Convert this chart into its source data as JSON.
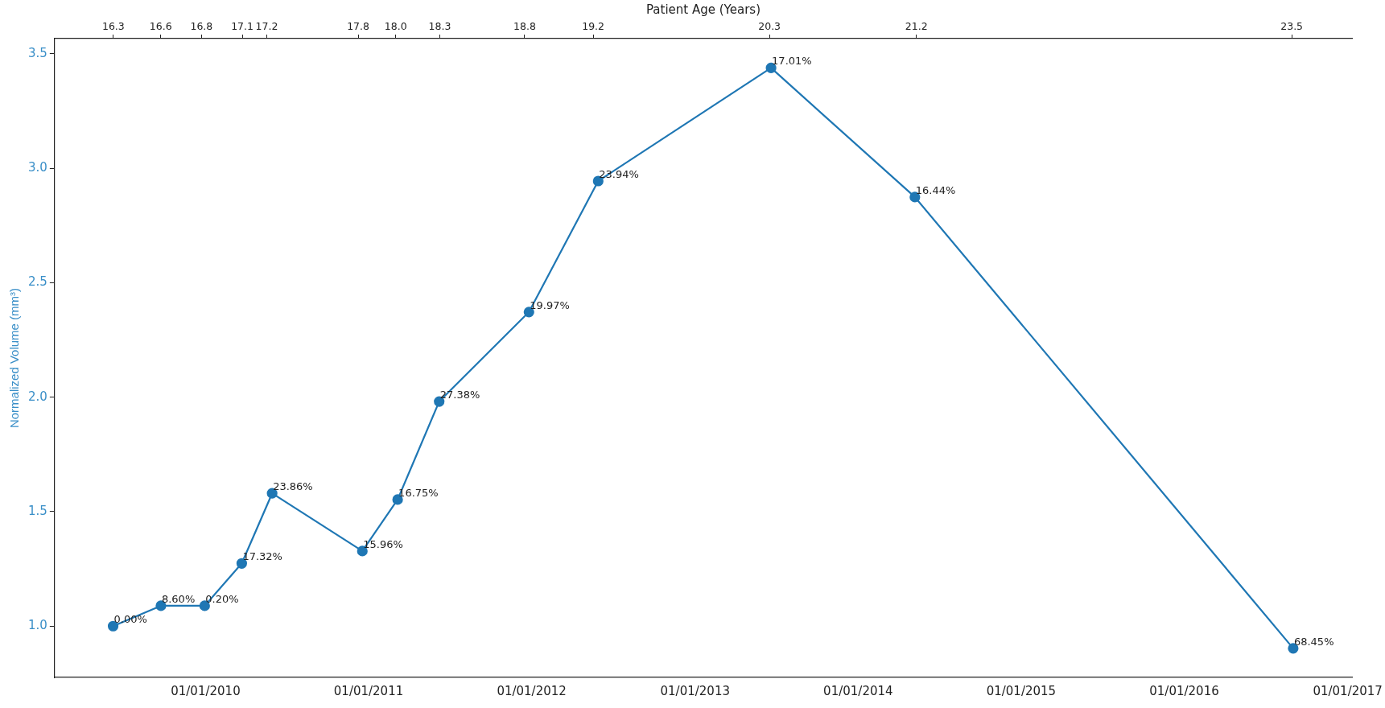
{
  "chart_data": {
    "type": "line",
    "x2label": "Patient Age (Years)",
    "ylabel": "Normalized Volume (mm³)",
    "x": [
      "2009-06-08",
      "2009-09-23",
      "2009-12-30",
      "2010-03-23",
      "2010-05-30",
      "2010-12-18",
      "2011-03-07",
      "2011-06-08",
      "2011-12-26",
      "2012-05-29",
      "2013-06-20",
      "2014-05-08",
      "2016-09-01"
    ],
    "series": [
      {
        "color": "#1f77b4",
        "values": [
          1.0,
          1.089,
          1.089,
          1.274,
          1.58,
          1.328,
          1.553,
          1.981,
          2.372,
          2.944,
          3.438,
          2.874,
          0.903
        ]
      }
    ],
    "annotations": [
      {
        "text": "0.00%",
        "x": "2009-06-08",
        "y": 1.0
      },
      {
        "text": "8.60%",
        "x": "2009-09-23",
        "y": 1.089
      },
      {
        "text": "0.20%",
        "x": "2009-12-30",
        "y": 1.089
      },
      {
        "text": "17.32%",
        "x": "2010-03-23",
        "y": 1.274
      },
      {
        "text": "23.86%",
        "x": "2010-05-30",
        "y": 1.58
      },
      {
        "text": "15.96%",
        "x": "2010-12-18",
        "y": 1.328
      },
      {
        "text": "16.75%",
        "x": "2011-03-07",
        "y": 1.553
      },
      {
        "text": "27.38%",
        "x": "2011-06-08",
        "y": 1.981
      },
      {
        "text": "19.97%",
        "x": "2011-12-26",
        "y": 2.372
      },
      {
        "text": "23.94%",
        "x": "2012-05-29",
        "y": 2.944
      },
      {
        "text": "17.01%",
        "x": "2013-06-20",
        "y": 3.438
      },
      {
        "text": "16.44%",
        "x": "2014-05-08",
        "y": 2.874
      },
      {
        "text": "68.45%",
        "x": "2016-09-01",
        "y": 0.903
      }
    ],
    "xlim": [
      "2009-01-28",
      "2017-01-11"
    ],
    "xticks": [
      {
        "value": "2010-01-01",
        "label": "01/01/2010"
      },
      {
        "value": "2011-01-01",
        "label": "01/01/2011"
      },
      {
        "value": "2012-01-01",
        "label": "01/01/2012"
      },
      {
        "value": "2013-01-01",
        "label": "01/01/2013"
      },
      {
        "value": "2014-01-01",
        "label": "01/01/2014"
      },
      {
        "value": "2015-01-01",
        "label": "01/01/2015"
      },
      {
        "value": "2016-01-01",
        "label": "01/01/2016"
      },
      {
        "value": "2017-01-01",
        "label": "01/01/2017"
      }
    ],
    "x2lim": [
      15.94,
      23.89
    ],
    "x2ticks": [
      16.3,
      {
        "value": 16.59,
        "label": "16.6"
      },
      {
        "value": 16.84,
        "label": "16.8"
      },
      {
        "value": 17.09,
        "label": "17.1"
      },
      {
        "value": 17.24,
        "label": "17.2"
      },
      17.8,
      {
        "value": 18.03,
        "label": "18.0"
      },
      18.3,
      {
        "value": 18.82,
        "label": "18.8"
      },
      {
        "value": 19.24,
        "label": "19.2"
      },
      {
        "value": 20.32,
        "label": "20.3"
      },
      {
        "value": 21.22,
        "label": "21.2"
      },
      {
        "value": 23.52,
        "label": "23.5"
      }
    ],
    "ylim": [
      0.776,
      3.566
    ],
    "yticks": [
      {
        "value": 1.0,
        "label": "1.0"
      },
      1.5,
      {
        "value": 2.0,
        "label": "2.0"
      },
      2.5,
      {
        "value": 3.0,
        "label": "3.0"
      },
      3.5
    ],
    "grid": false,
    "legend": false,
    "marker": "circle",
    "line_style": "solid"
  }
}
